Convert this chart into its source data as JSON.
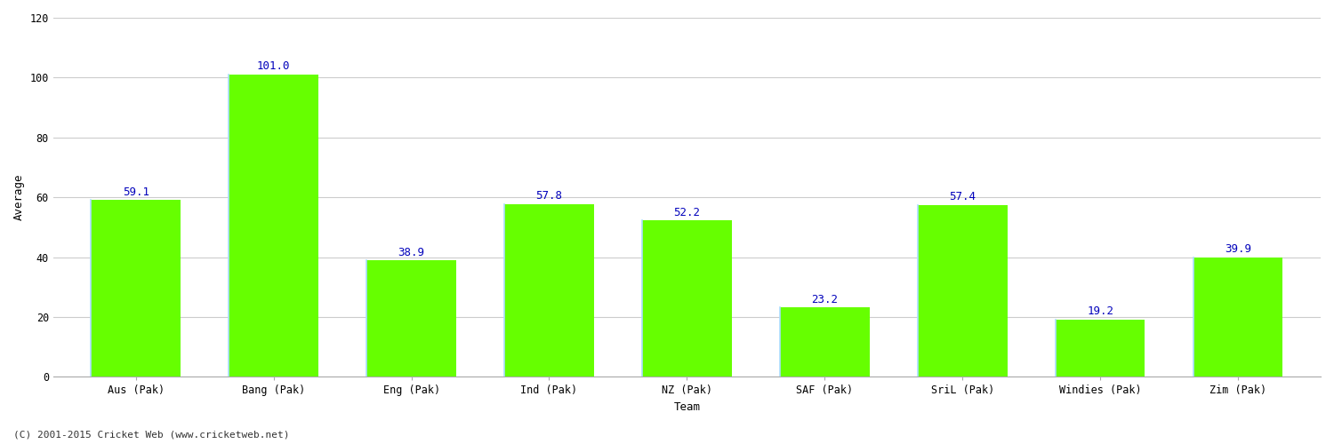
{
  "categories": [
    "Aus (Pak)",
    "Bang (Pak)",
    "Eng (Pak)",
    "Ind (Pak)",
    "NZ (Pak)",
    "SAF (Pak)",
    "SriL (Pak)",
    "Windies (Pak)",
    "Zim (Pak)"
  ],
  "values": [
    59.1,
    101.0,
    38.9,
    57.8,
    52.2,
    23.2,
    57.4,
    19.2,
    39.9
  ],
  "bar_color": "#66ff00",
  "bar_edge_color_left": "#aaddff",
  "bar_edge_color_other": "#66ff00",
  "label_color": "#0000bb",
  "xlabel": "Team",
  "ylabel": "Average",
  "ylim": [
    0,
    120
  ],
  "yticks": [
    0,
    20,
    40,
    60,
    80,
    100,
    120
  ],
  "grid_color": "#cccccc",
  "background_color": "#ffffff",
  "footer_text": "(C) 2001-2015 Cricket Web (www.cricketweb.net)",
  "label_fontsize": 9,
  "axis_label_fontsize": 9,
  "tick_fontsize": 8.5,
  "footer_fontsize": 8,
  "bar_width": 0.65
}
